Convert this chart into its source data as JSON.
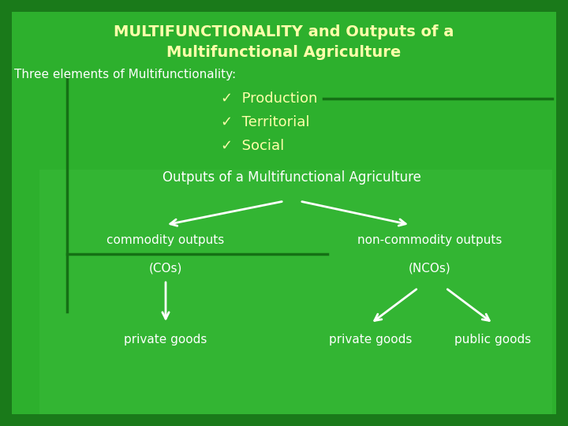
{
  "title_line1": "MULTIFUNCTIONALITY and Outputs of a",
  "title_line2": "Multifunctional Agriculture",
  "title_color": "#FFFFAA",
  "bg_color_outer": "#1A7A1A",
  "bg_color_inner": "#2DB02D",
  "text_color_white": "#FFFFFF",
  "text_color_yellow": "#FFFFAA",
  "three_elements_text": "Three elements of Multifunctionality:",
  "checkmark": "✓",
  "items": [
    "Production",
    "Territorial",
    "Social"
  ],
  "outputs_title": "Outputs of a Multifunctional Agriculture",
  "commodity": "commodity outputs",
  "commodity_sub": "(COs)",
  "non_commodity": "non-commodity outputs",
  "non_commodity_sub": "(NCOs)",
  "private_goods_left": "private goods",
  "private_goods_right": "private goods",
  "public_goods": "public goods",
  "line_color": "#157015",
  "arrow_color": "#FFFFFF"
}
